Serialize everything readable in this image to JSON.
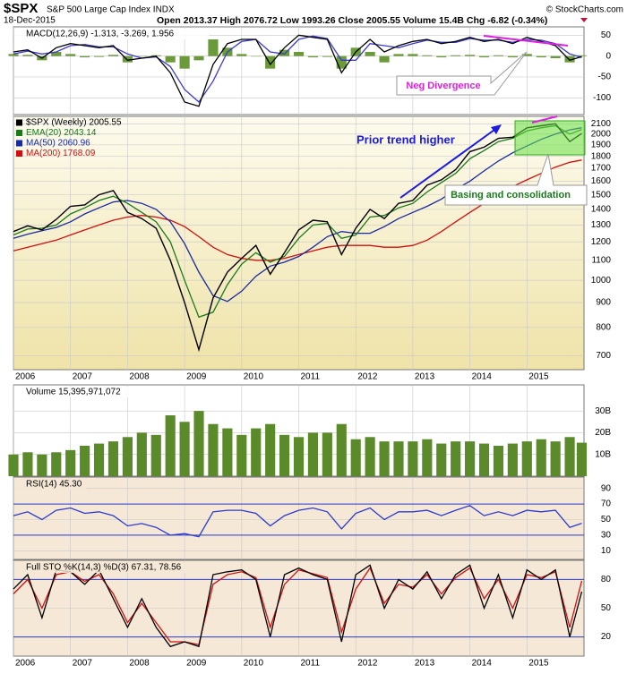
{
  "header": {
    "symbol": "$SPX",
    "name": "S&P 500 Large Cap Index INDX",
    "date": "18-Dec-2015",
    "quote": "Open 2013.37 High 2076.72 Low 1993.26 Close 2005.55 Volume 15.4B Chg -6.82 (-0.34%)",
    "credit": "© StockCharts.com"
  },
  "annotations": {
    "trend": "Prior trend higher",
    "basing": "Basing and consolidation",
    "divergence": "Neg Divergence"
  },
  "chart_data": [
    {
      "type": "line",
      "title": "MACD(12,26,9) -1.313, -3.269, 1.956",
      "x": [
        2006,
        2006.25,
        2006.5,
        2006.75,
        2007,
        2007.25,
        2007.5,
        2007.75,
        2008,
        2008.25,
        2008.5,
        2008.75,
        2009,
        2009.25,
        2009.5,
        2009.75,
        2010,
        2010.25,
        2010.5,
        2010.75,
        2011,
        2011.25,
        2011.5,
        2011.75,
        2012,
        2012.25,
        2012.5,
        2012.75,
        2013,
        2013.25,
        2013.5,
        2013.75,
        2014,
        2014.25,
        2014.5,
        2014.75,
        2015,
        2015.25,
        2015.5,
        2015.75,
        2015.96
      ],
      "xlim": [
        2006,
        2016
      ],
      "ylim": [
        -140,
        70
      ],
      "yticks": [
        50,
        0,
        -50,
        -100
      ],
      "series": [
        {
          "type": "bar",
          "color": "#6a9a3a",
          "values": [
            5,
            3,
            -10,
            10,
            5,
            -3,
            -2,
            3,
            -15,
            0,
            2,
            -15,
            -30,
            -10,
            40,
            20,
            5,
            0,
            -30,
            15,
            10,
            -3,
            -2,
            -30,
            20,
            10,
            -15,
            5,
            5,
            2,
            -3,
            2,
            3,
            -3,
            2,
            -3,
            5,
            -3,
            -5,
            -15,
            1.956
          ]
        },
        {
          "type": "line",
          "color": "#3b3bd0",
          "values": [
            5,
            12,
            5,
            10,
            25,
            28,
            22,
            22,
            5,
            -5,
            -2,
            -25,
            -80,
            -110,
            -60,
            10,
            35,
            40,
            10,
            5,
            40,
            48,
            42,
            -10,
            -10,
            30,
            25,
            20,
            30,
            38,
            33,
            33,
            42,
            38,
            38,
            33,
            40,
            38,
            30,
            5,
            -3.269
          ]
        },
        {
          "type": "line",
          "color": "#000000",
          "values": [
            10,
            15,
            -5,
            20,
            30,
            25,
            20,
            25,
            -10,
            -5,
            0,
            -40,
            -110,
            -120,
            -20,
            30,
            40,
            40,
            -20,
            20,
            50,
            45,
            40,
            -40,
            10,
            40,
            10,
            25,
            35,
            40,
            30,
            35,
            45,
            35,
            40,
            30,
            45,
            35,
            25,
            -10,
            -1.313
          ]
        }
      ]
    },
    {
      "type": "line",
      "log": true,
      "x": [
        2006,
        2006.25,
        2006.5,
        2006.75,
        2007,
        2007.25,
        2007.5,
        2007.75,
        2008,
        2008.25,
        2008.5,
        2008.75,
        2009,
        2009.25,
        2009.5,
        2009.75,
        2010,
        2010.25,
        2010.5,
        2010.75,
        2011,
        2011.25,
        2011.5,
        2011.75,
        2012,
        2012.25,
        2012.5,
        2012.75,
        2013,
        2013.25,
        2013.5,
        2013.75,
        2014,
        2014.25,
        2014.5,
        2014.75,
        2015,
        2015.25,
        2015.5,
        2015.75,
        2015.96
      ],
      "xlim": [
        2006,
        2016
      ],
      "xticks": [
        2006,
        2007,
        2008,
        2009,
        2010,
        2011,
        2012,
        2013,
        2014,
        2015
      ],
      "ylim": [
        655,
        2175
      ],
      "yticks": [
        2100,
        2000,
        1900,
        1800,
        1700,
        1600,
        1500,
        1400,
        1300,
        1200,
        1100,
        1000,
        900,
        800,
        700
      ],
      "series": [
        {
          "name": "MA(200) 1768.09",
          "color": "#d01010",
          "values": [
            1150,
            1170,
            1190,
            1210,
            1240,
            1270,
            1300,
            1330,
            1350,
            1360,
            1350,
            1330,
            1290,
            1230,
            1170,
            1130,
            1110,
            1100,
            1100,
            1110,
            1130,
            1150,
            1170,
            1180,
            1180,
            1180,
            1170,
            1170,
            1180,
            1210,
            1260,
            1320,
            1380,
            1440,
            1500,
            1560,
            1610,
            1660,
            1710,
            1750,
            1768.09
          ]
        },
        {
          "name": "MA(50) 2060.96",
          "color": "#1a2aa0",
          "values": [
            1220,
            1245,
            1265,
            1285,
            1320,
            1370,
            1410,
            1450,
            1460,
            1440,
            1400,
            1320,
            1190,
            1040,
            930,
            905,
            950,
            1020,
            1070,
            1090,
            1120,
            1170,
            1230,
            1260,
            1250,
            1250,
            1290,
            1340,
            1380,
            1420,
            1470,
            1540,
            1600,
            1680,
            1760,
            1830,
            1890,
            1950,
            2000,
            2040,
            2060.96
          ]
        },
        {
          "name": "EMA(20) 2043.14",
          "color": "#1a7a1a",
          "values": [
            1240,
            1275,
            1280,
            1300,
            1370,
            1410,
            1460,
            1490,
            1440,
            1380,
            1320,
            1200,
            1000,
            840,
            860,
            980,
            1080,
            1140,
            1090,
            1120,
            1220,
            1300,
            1310,
            1220,
            1240,
            1350,
            1360,
            1410,
            1440,
            1520,
            1590,
            1660,
            1780,
            1850,
            1930,
            1960,
            2030,
            2060,
            2080,
            2000,
            2043.14
          ]
        },
        {
          "name": "$SPX (Weekly) 2005.55",
          "color": "#000000",
          "values": [
            1260,
            1295,
            1270,
            1335,
            1420,
            1430,
            1500,
            1530,
            1380,
            1340,
            1280,
            1100,
            900,
            720,
            920,
            1040,
            1110,
            1180,
            1030,
            1140,
            1270,
            1330,
            1320,
            1130,
            1280,
            1400,
            1340,
            1440,
            1460,
            1570,
            1610,
            1690,
            1840,
            1880,
            1960,
            1970,
            2060,
            2080,
            2100,
            1930,
            2005.55
          ]
        }
      ]
    },
    {
      "type": "bar",
      "title": "Volume 15,395,971,072",
      "x": [
        2006,
        2006.25,
        2006.5,
        2006.75,
        2007,
        2007.25,
        2007.5,
        2007.75,
        2008,
        2008.25,
        2008.5,
        2008.75,
        2009,
        2009.25,
        2009.5,
        2009.75,
        2010,
        2010.25,
        2010.5,
        2010.75,
        2011,
        2011.25,
        2011.5,
        2011.75,
        2012,
        2012.25,
        2012.5,
        2012.75,
        2013,
        2013.25,
        2013.5,
        2013.75,
        2014,
        2014.25,
        2014.5,
        2014.75,
        2015,
        2015.25,
        2015.5,
        2015.75,
        2015.96
      ],
      "xlim": [
        2006,
        2016
      ],
      "ylim": [
        0,
        42
      ],
      "yticks": [
        {
          "value": 30,
          "label": "30B"
        },
        {
          "value": 20,
          "label": "20B"
        },
        {
          "value": 10,
          "label": "10B"
        }
      ],
      "series": [
        {
          "type": "bar",
          "color": "#5a8a2a",
          "values": [
            10,
            11,
            10,
            11,
            12,
            14,
            15,
            16,
            18,
            20,
            19,
            28,
            25,
            30,
            24,
            22,
            19,
            22,
            24,
            19,
            18,
            20,
            20,
            24,
            17,
            18,
            16,
            16,
            16,
            17,
            15,
            16,
            16,
            15,
            14,
            15,
            16,
            17,
            16,
            18,
            15.4
          ]
        }
      ]
    },
    {
      "type": "line",
      "title": "RSI(14) 45.30",
      "x": [
        2006,
        2006.25,
        2006.5,
        2006.75,
        2007,
        2007.25,
        2007.5,
        2007.75,
        2008,
        2008.25,
        2008.5,
        2008.75,
        2009,
        2009.25,
        2009.5,
        2009.75,
        2010,
        2010.25,
        2010.5,
        2010.75,
        2011,
        2011.25,
        2011.5,
        2011.75,
        2012,
        2012.25,
        2012.5,
        2012.75,
        2013,
        2013.25,
        2013.5,
        2013.75,
        2014,
        2014.25,
        2014.5,
        2014.75,
        2015,
        2015.25,
        2015.5,
        2015.75,
        2015.96
      ],
      "xlim": [
        2006,
        2016
      ],
      "ylim": [
        0,
        100
      ],
      "yticks": [
        90,
        70,
        50,
        30,
        10
      ],
      "bands": [
        70,
        30
      ],
      "series": [
        {
          "type": "line",
          "color": "#2a3ad0",
          "values": [
            55,
            60,
            50,
            62,
            65,
            58,
            60,
            55,
            42,
            45,
            40,
            30,
            32,
            28,
            60,
            62,
            62,
            58,
            42,
            55,
            62,
            65,
            60,
            38,
            58,
            65,
            50,
            60,
            60,
            62,
            55,
            62,
            68,
            55,
            60,
            55,
            62,
            60,
            62,
            40,
            45.3
          ]
        }
      ]
    },
    {
      "type": "line",
      "title": "Full STO %K(14,3) %D(3) 67.31, 78.56",
      "x": [
        2006,
        2006.25,
        2006.5,
        2006.75,
        2007,
        2007.25,
        2007.5,
        2007.75,
        2008,
        2008.25,
        2008.5,
        2008.75,
        2009,
        2009.25,
        2009.5,
        2009.75,
        2010,
        2010.25,
        2010.5,
        2010.75,
        2011,
        2011.25,
        2011.5,
        2011.75,
        2012,
        2012.25,
        2012.5,
        2012.75,
        2013,
        2013.25,
        2013.5,
        2013.75,
        2014,
        2014.25,
        2014.5,
        2014.75,
        2015,
        2015.25,
        2015.5,
        2015.75,
        2015.96
      ],
      "xlim": [
        2006,
        2016
      ],
      "xticks": [
        2006,
        2007,
        2008,
        2009,
        2010,
        2011,
        2012,
        2013,
        2014,
        2015
      ],
      "ylim": [
        0,
        100
      ],
      "yticks": [
        80,
        50,
        20
      ],
      "bands": [
        80,
        20
      ],
      "series": [
        {
          "type": "line",
          "color": "#d01010",
          "values": [
            65,
            80,
            50,
            85,
            88,
            78,
            85,
            65,
            35,
            55,
            35,
            15,
            15,
            12,
            75,
            85,
            88,
            82,
            30,
            75,
            90,
            86,
            82,
            25,
            70,
            92,
            55,
            75,
            72,
            85,
            65,
            82,
            92,
            60,
            80,
            50,
            85,
            82,
            88,
            30,
            78.56
          ]
        },
        {
          "type": "line",
          "color": "#000000",
          "values": [
            70,
            85,
            40,
            90,
            88,
            75,
            90,
            60,
            30,
            60,
            30,
            10,
            15,
            10,
            85,
            88,
            90,
            80,
            20,
            85,
            92,
            85,
            80,
            15,
            85,
            95,
            50,
            80,
            70,
            88,
            60,
            85,
            95,
            50,
            85,
            40,
            90,
            80,
            90,
            20,
            67.31
          ]
        }
      ]
    }
  ]
}
